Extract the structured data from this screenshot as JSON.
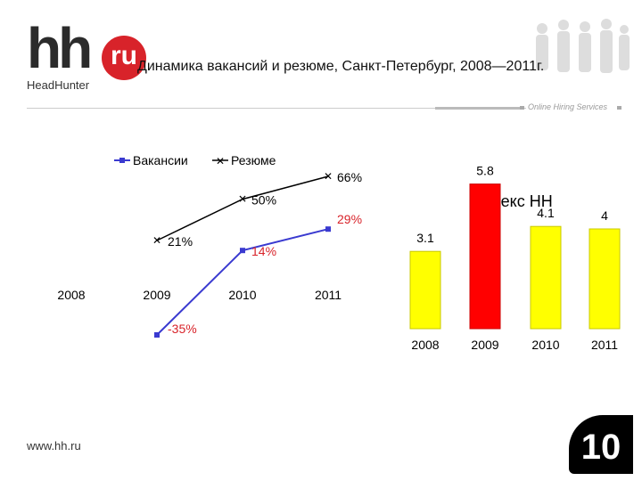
{
  "header": {
    "logo_main": "hh",
    "logo_badge": "ru",
    "logo_sub": "HeadHunter",
    "tagline": "Online Hiring Services",
    "title": "Динамика вакансий и резюме, Санкт-Петербург, 2008—2011г."
  },
  "footer": {
    "website": "www.hh.ru",
    "page_number": "10"
  },
  "colors": {
    "vacancies": "#3a3ad0",
    "resumes": "#000000",
    "bar_normal": "#ffff00",
    "bar_highlight": "#ff0000",
    "bar_edge": "#c8c800"
  },
  "chart_data": [
    {
      "type": "line",
      "legend": [
        "Вакансии",
        "Резюме"
      ],
      "legend_position": "top-left",
      "categories": [
        "2008",
        "2009",
        "2010",
        "2011"
      ],
      "series": [
        {
          "name": "Вакансии",
          "values": [
            null,
            -35,
            14,
            29
          ],
          "labels": [
            "",
            "-35%",
            "14%",
            "29%"
          ]
        },
        {
          "name": "Резюме",
          "values": [
            null,
            21,
            50,
            66
          ],
          "labels": [
            "",
            "21%",
            "50%",
            "66%"
          ]
        }
      ],
      "ylim": [
        -40,
        70
      ],
      "grid": false
    },
    {
      "type": "bar",
      "title": "Индекс НН",
      "categories": [
        "2008",
        "2009",
        "2010",
        "2011"
      ],
      "values": [
        3.1,
        5.8,
        4.1,
        4.0
      ],
      "labels": [
        "3.1",
        "5.8",
        "4.1",
        "4"
      ],
      "highlight_index": 1,
      "ylim": [
        0,
        6
      ]
    }
  ]
}
